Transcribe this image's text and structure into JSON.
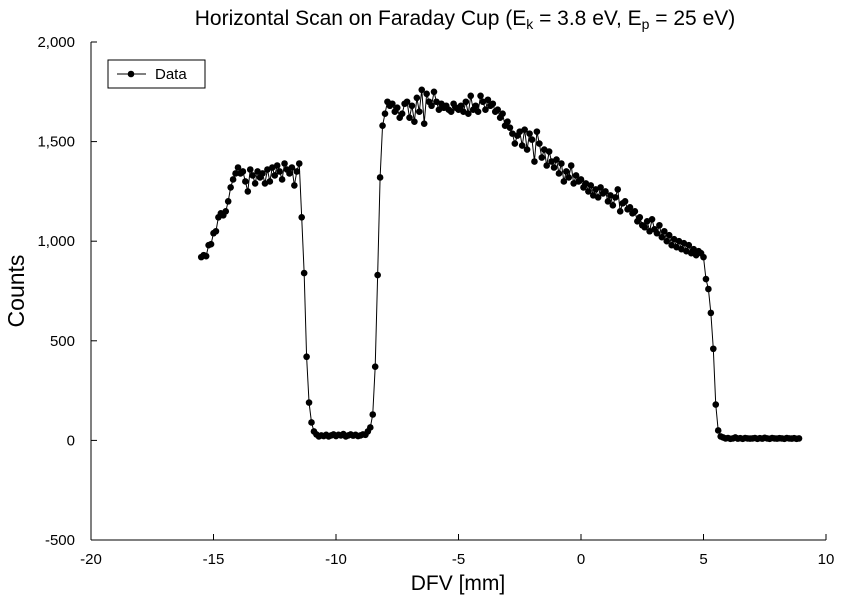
{
  "chart_data": {
    "type": "line",
    "title_parts": [
      {
        "text": "Horizontal Scan on Faraday Cup (E"
      },
      {
        "text": "k",
        "sub": true
      },
      {
        "text": " = 3.8 eV, E"
      },
      {
        "text": "p",
        "sub": true
      },
      {
        "text": " = 25 eV)"
      }
    ],
    "x_label": "DFV [mm]",
    "y_label": "Counts",
    "xlim": [
      -20,
      10
    ],
    "xticks": [
      -20,
      -15,
      -10,
      -5,
      0,
      5,
      10
    ],
    "ylim": [
      -500,
      2000
    ],
    "yticks": [
      -500,
      0,
      500,
      {
        "value": 1000,
        "label": "1,000"
      },
      {
        "value": 1500,
        "label": "1,500"
      },
      {
        "value": 2000,
        "label": "2,000"
      }
    ],
    "legend": "upper-left",
    "grid": false,
    "x": [
      -15.5,
      -15.4,
      -15.3,
      -15.2,
      -15.1,
      -15.0,
      -14.9,
      -14.8,
      -14.7,
      -14.6,
      -14.5,
      -14.4,
      -14.3,
      -14.2,
      -14.1,
      -14.0,
      -13.9,
      -13.8,
      -13.7,
      -13.6,
      -13.5,
      -13.4,
      -13.3,
      -13.2,
      -13.1,
      -13.0,
      -12.9,
      -12.8,
      -12.7,
      -12.6,
      -12.5,
      -12.4,
      -12.3,
      -12.2,
      -12.1,
      -12.0,
      -11.9,
      -11.8,
      -11.7,
      -11.6,
      -11.5,
      -11.4,
      -11.3,
      -11.2,
      -11.1,
      -11.0,
      -10.9,
      -10.8,
      -10.7,
      -10.6,
      -10.5,
      -10.4,
      -10.3,
      -10.2,
      -10.1,
      -10.0,
      -9.9,
      -9.8,
      -9.7,
      -9.6,
      -9.5,
      -9.4,
      -9.3,
      -9.2,
      -9.1,
      -9.0,
      -8.9,
      -8.8,
      -8.7,
      -8.6,
      -8.5,
      -8.4,
      -8.3,
      -8.2,
      -8.1,
      -8.0,
      -7.9,
      -7.8,
      -7.7,
      -7.6,
      -7.5,
      -7.4,
      -7.3,
      -7.2,
      -7.1,
      -7.0,
      -6.9,
      -6.8,
      -6.7,
      -6.6,
      -6.5,
      -6.4,
      -6.3,
      -6.2,
      -6.1,
      -6.0,
      -5.9,
      -5.8,
      -5.7,
      -5.6,
      -5.5,
      -5.4,
      -5.3,
      -5.2,
      -5.1,
      -5.0,
      -4.9,
      -4.8,
      -4.7,
      -4.6,
      -4.5,
      -4.4,
      -4.3,
      -4.2,
      -4.1,
      -4.0,
      -3.9,
      -3.8,
      -3.7,
      -3.6,
      -3.5,
      -3.4,
      -3.3,
      -3.2,
      -3.1,
      -3.0,
      -2.9,
      -2.8,
      -2.7,
      -2.6,
      -2.5,
      -2.4,
      -2.3,
      -2.2,
      -2.1,
      -2.0,
      -1.9,
      -1.8,
      -1.7,
      -1.6,
      -1.5,
      -1.4,
      -1.3,
      -1.2,
      -1.1,
      -1.0,
      -0.9,
      -0.8,
      -0.7,
      -0.6,
      -0.5,
      -0.4,
      -0.3,
      -0.2,
      -0.1,
      0.0,
      0.1,
      0.2,
      0.3,
      0.4,
      0.5,
      0.6,
      0.7,
      0.8,
      0.9,
      1.0,
      1.1,
      1.2,
      1.3,
      1.4,
      1.5,
      1.6,
      1.7,
      1.8,
      1.9,
      2.0,
      2.1,
      2.2,
      2.3,
      2.4,
      2.5,
      2.6,
      2.7,
      2.8,
      2.9,
      3.0,
      3.1,
      3.2,
      3.3,
      3.4,
      3.5,
      3.6,
      3.7,
      3.8,
      3.9,
      4.0,
      4.1,
      4.2,
      4.3,
      4.4,
      4.5,
      4.6,
      4.7,
      4.8,
      4.9,
      5.0,
      5.1,
      5.2,
      5.3,
      5.4,
      5.5,
      5.6,
      5.7,
      5.8,
      5.9,
      6.0,
      6.1,
      6.2,
      6.3,
      6.4,
      6.5,
      6.6,
      6.7,
      6.8,
      6.9,
      7.0,
      7.1,
      7.2,
      7.3,
      7.4,
      7.5,
      7.6,
      7.7,
      7.8,
      7.9,
      8.0,
      8.1,
      8.2,
      8.3,
      8.4,
      8.5,
      8.6,
      8.7,
      8.8,
      8.9
    ],
    "series": [
      {
        "name": "Data",
        "color": "#000000",
        "values": [
          920,
          930,
          925,
          980,
          985,
          1040,
          1050,
          1120,
          1140,
          1130,
          1150,
          1200,
          1270,
          1310,
          1340,
          1370,
          1340,
          1350,
          1300,
          1250,
          1360,
          1330,
          1290,
          1350,
          1320,
          1340,
          1290,
          1360,
          1300,
          1370,
          1330,
          1380,
          1350,
          1310,
          1390,
          1360,
          1340,
          1370,
          1280,
          1350,
          1390,
          1120,
          840,
          420,
          190,
          90,
          45,
          30,
          20,
          25,
          22,
          28,
          20,
          25,
          30,
          22,
          28,
          25,
          32,
          20,
          25,
          30,
          24,
          28,
          22,
          25,
          30,
          28,
          45,
          65,
          130,
          370,
          830,
          1320,
          1580,
          1640,
          1700,
          1680,
          1690,
          1650,
          1670,
          1620,
          1640,
          1690,
          1700,
          1620,
          1680,
          1600,
          1720,
          1650,
          1760,
          1590,
          1740,
          1700,
          1680,
          1750,
          1700,
          1660,
          1690,
          1670,
          1680,
          1660,
          1650,
          1690,
          1670,
          1660,
          1680,
          1650,
          1700,
          1640,
          1730,
          1660,
          1680,
          1650,
          1730,
          1700,
          1660,
          1710,
          1680,
          1690,
          1650,
          1660,
          1620,
          1640,
          1580,
          1600,
          1570,
          1540,
          1490,
          1530,
          1550,
          1480,
          1560,
          1460,
          1540,
          1510,
          1400,
          1550,
          1490,
          1420,
          1460,
          1380,
          1450,
          1400,
          1370,
          1410,
          1340,
          1390,
          1300,
          1350,
          1320,
          1380,
          1290,
          1330,
          1300,
          1310,
          1270,
          1290,
          1250,
          1280,
          1230,
          1260,
          1220,
          1270,
          1240,
          1250,
          1200,
          1230,
          1180,
          1220,
          1260,
          1150,
          1190,
          1200,
          1160,
          1170,
          1140,
          1150,
          1100,
          1120,
          1080,
          1070,
          1100,
          1050,
          1110,
          1060,
          1040,
          1080,
          1020,
          1050,
          1000,
          1030,
          980,
          1010,
          970,
          1000,
          960,
          990,
          950,
          980,
          940,
          960,
          930,
          950,
          940,
          920,
          810,
          760,
          640,
          460,
          180,
          50,
          20,
          15,
          10,
          12,
          8,
          10,
          15,
          9,
          11,
          8,
          12,
          10,
          9,
          10,
          12,
          8,
          11,
          9,
          13,
          10,
          8,
          12,
          10,
          9,
          11,
          10,
          8,
          12,
          10,
          9,
          11,
          8,
          10
        ]
      }
    ]
  }
}
